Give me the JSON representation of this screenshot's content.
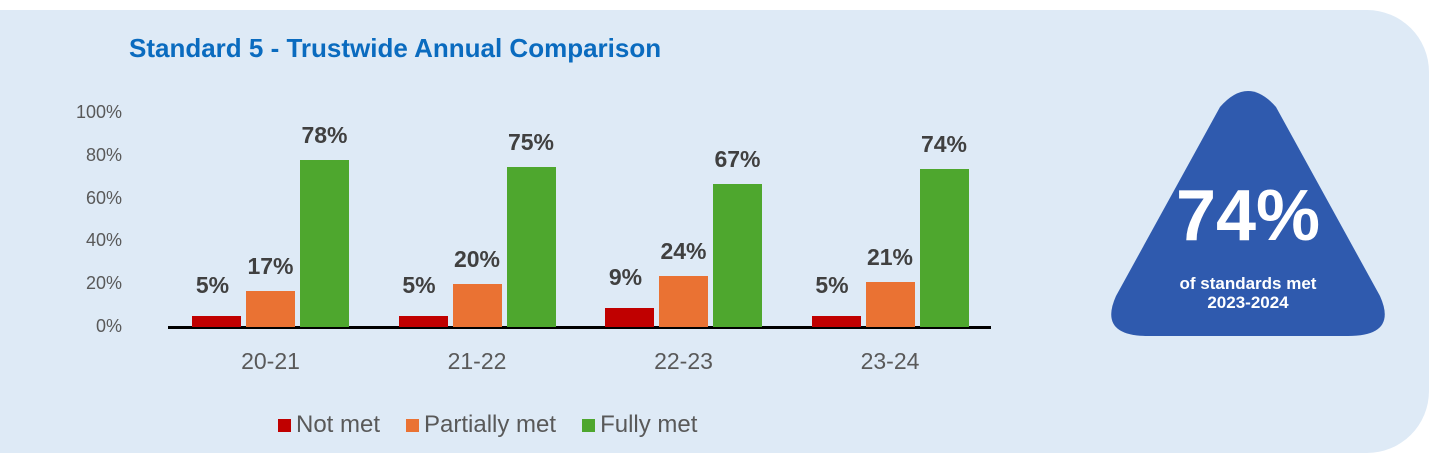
{
  "title": "Standard 5 - Trustwide Annual Comparison",
  "colors": {
    "panel_bg": "#deeaf6",
    "title": "#0a6bbf",
    "not_met": "#c00000",
    "partially_met": "#ea7233",
    "fully_met": "#4ea72e",
    "badge": "#2f5aae"
  },
  "y_ticks": [
    "100%",
    "80%",
    "60%",
    "40%",
    "20%",
    "0%"
  ],
  "categories": [
    "20-21",
    "21-22",
    "22-23",
    "23-24"
  ],
  "legend": [
    "Not met",
    "Partially met",
    "Fully met"
  ],
  "bar_labels": {
    "c0": [
      "5%",
      "17%",
      "78%"
    ],
    "c1": [
      "5%",
      "20%",
      "75%"
    ],
    "c2": [
      "9%",
      "24%",
      "67%"
    ],
    "c3": [
      "5%",
      "21%",
      "74%"
    ]
  },
  "badge": {
    "value": "74%",
    "line1": "of standards met",
    "line2": "2023-2024"
  },
  "chart_data": {
    "type": "bar",
    "title": "Standard 5 - Trustwide Annual Comparison",
    "categories": [
      "20-21",
      "21-22",
      "22-23",
      "23-24"
    ],
    "series": [
      {
        "name": "Not met",
        "color": "#c00000",
        "values": [
          5,
          5,
          9,
          5
        ]
      },
      {
        "name": "Partially met",
        "color": "#ea7233",
        "values": [
          17,
          20,
          24,
          21
        ]
      },
      {
        "name": "Fully met",
        "color": "#4ea72e",
        "values": [
          78,
          75,
          67,
          74
        ]
      }
    ],
    "xlabel": "",
    "ylabel": "",
    "ylim": [
      0,
      100
    ],
    "y_ticks": [
      0,
      20,
      40,
      60,
      80,
      100
    ],
    "y_tick_format": "percent",
    "grid": false,
    "data_labels": true,
    "legend_position": "bottom",
    "annotation": "74% of standards met 2023-2024"
  }
}
